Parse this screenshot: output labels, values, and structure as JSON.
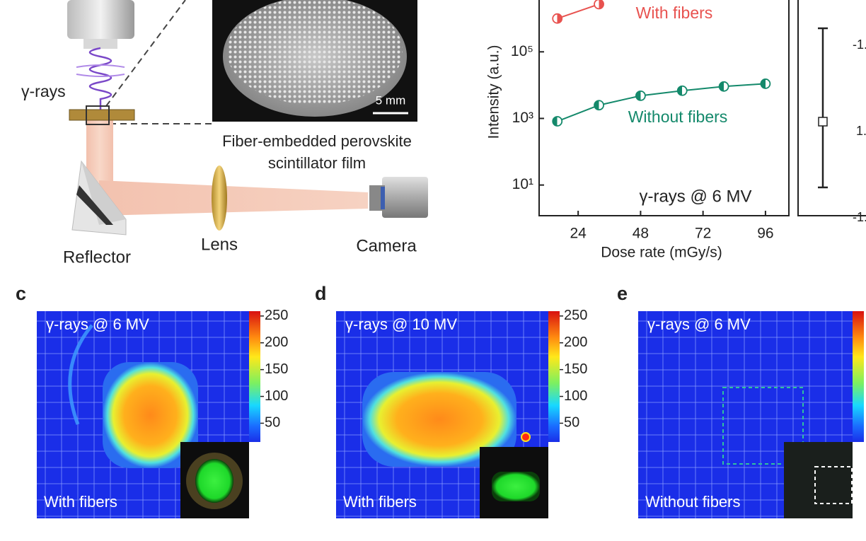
{
  "schematic": {
    "gamma_label": "γ-rays",
    "scale_bar": "5 mm",
    "film_label": "Fiber-embedded perovskite scintillator film",
    "reflector": "Reflector",
    "lens": "Lens",
    "camera": "Camera"
  },
  "chart_data": {
    "type": "line",
    "x_label": "Dose rate (mGy/s)",
    "y_label": "Intensity (a.u.)",
    "annotation": "γ-rays @ 6 MV",
    "log_y": true,
    "x": [
      16,
      32,
      48,
      64,
      80,
      96
    ],
    "xlim": [
      9,
      105
    ],
    "ylim": [
      1.2,
      3600000
    ],
    "xticks": [
      24,
      48,
      72,
      96
    ],
    "yticks": [
      {
        "value": 10,
        "label": "10¹"
      },
      {
        "value": 1000,
        "label": "10³"
      },
      {
        "value": 100000,
        "label": "10⁵"
      }
    ],
    "series": [
      {
        "name": "With fibers",
        "color": "#e8524f",
        "values": [
          1000000,
          2700000,
          null,
          null,
          null,
          null
        ]
      },
      {
        "name": "Without fibers",
        "color": "#14896b",
        "values": [
          820,
          2500,
          4800,
          6800,
          9100,
          11000
        ]
      }
    ]
  },
  "side_panel": {
    "tick_labels": [
      "-1.",
      "1.",
      "-1."
    ]
  },
  "panels": [
    {
      "letter": "c",
      "title": "γ-rays @ 6 MV",
      "caption": "With fibers",
      "colorbar_lim": [
        15,
        259
      ],
      "colorbar_ticks": [
        250,
        200,
        150,
        100,
        50
      ]
    },
    {
      "letter": "d",
      "title": "γ-rays @ 10 MV",
      "caption": "With fibers",
      "colorbar_lim": [
        15,
        259
      ],
      "colorbar_ticks": [
        250,
        200,
        150,
        100,
        50
      ]
    },
    {
      "letter": "e",
      "title": "γ-rays @ 6 MV",
      "caption": "Without fibers"
    }
  ]
}
